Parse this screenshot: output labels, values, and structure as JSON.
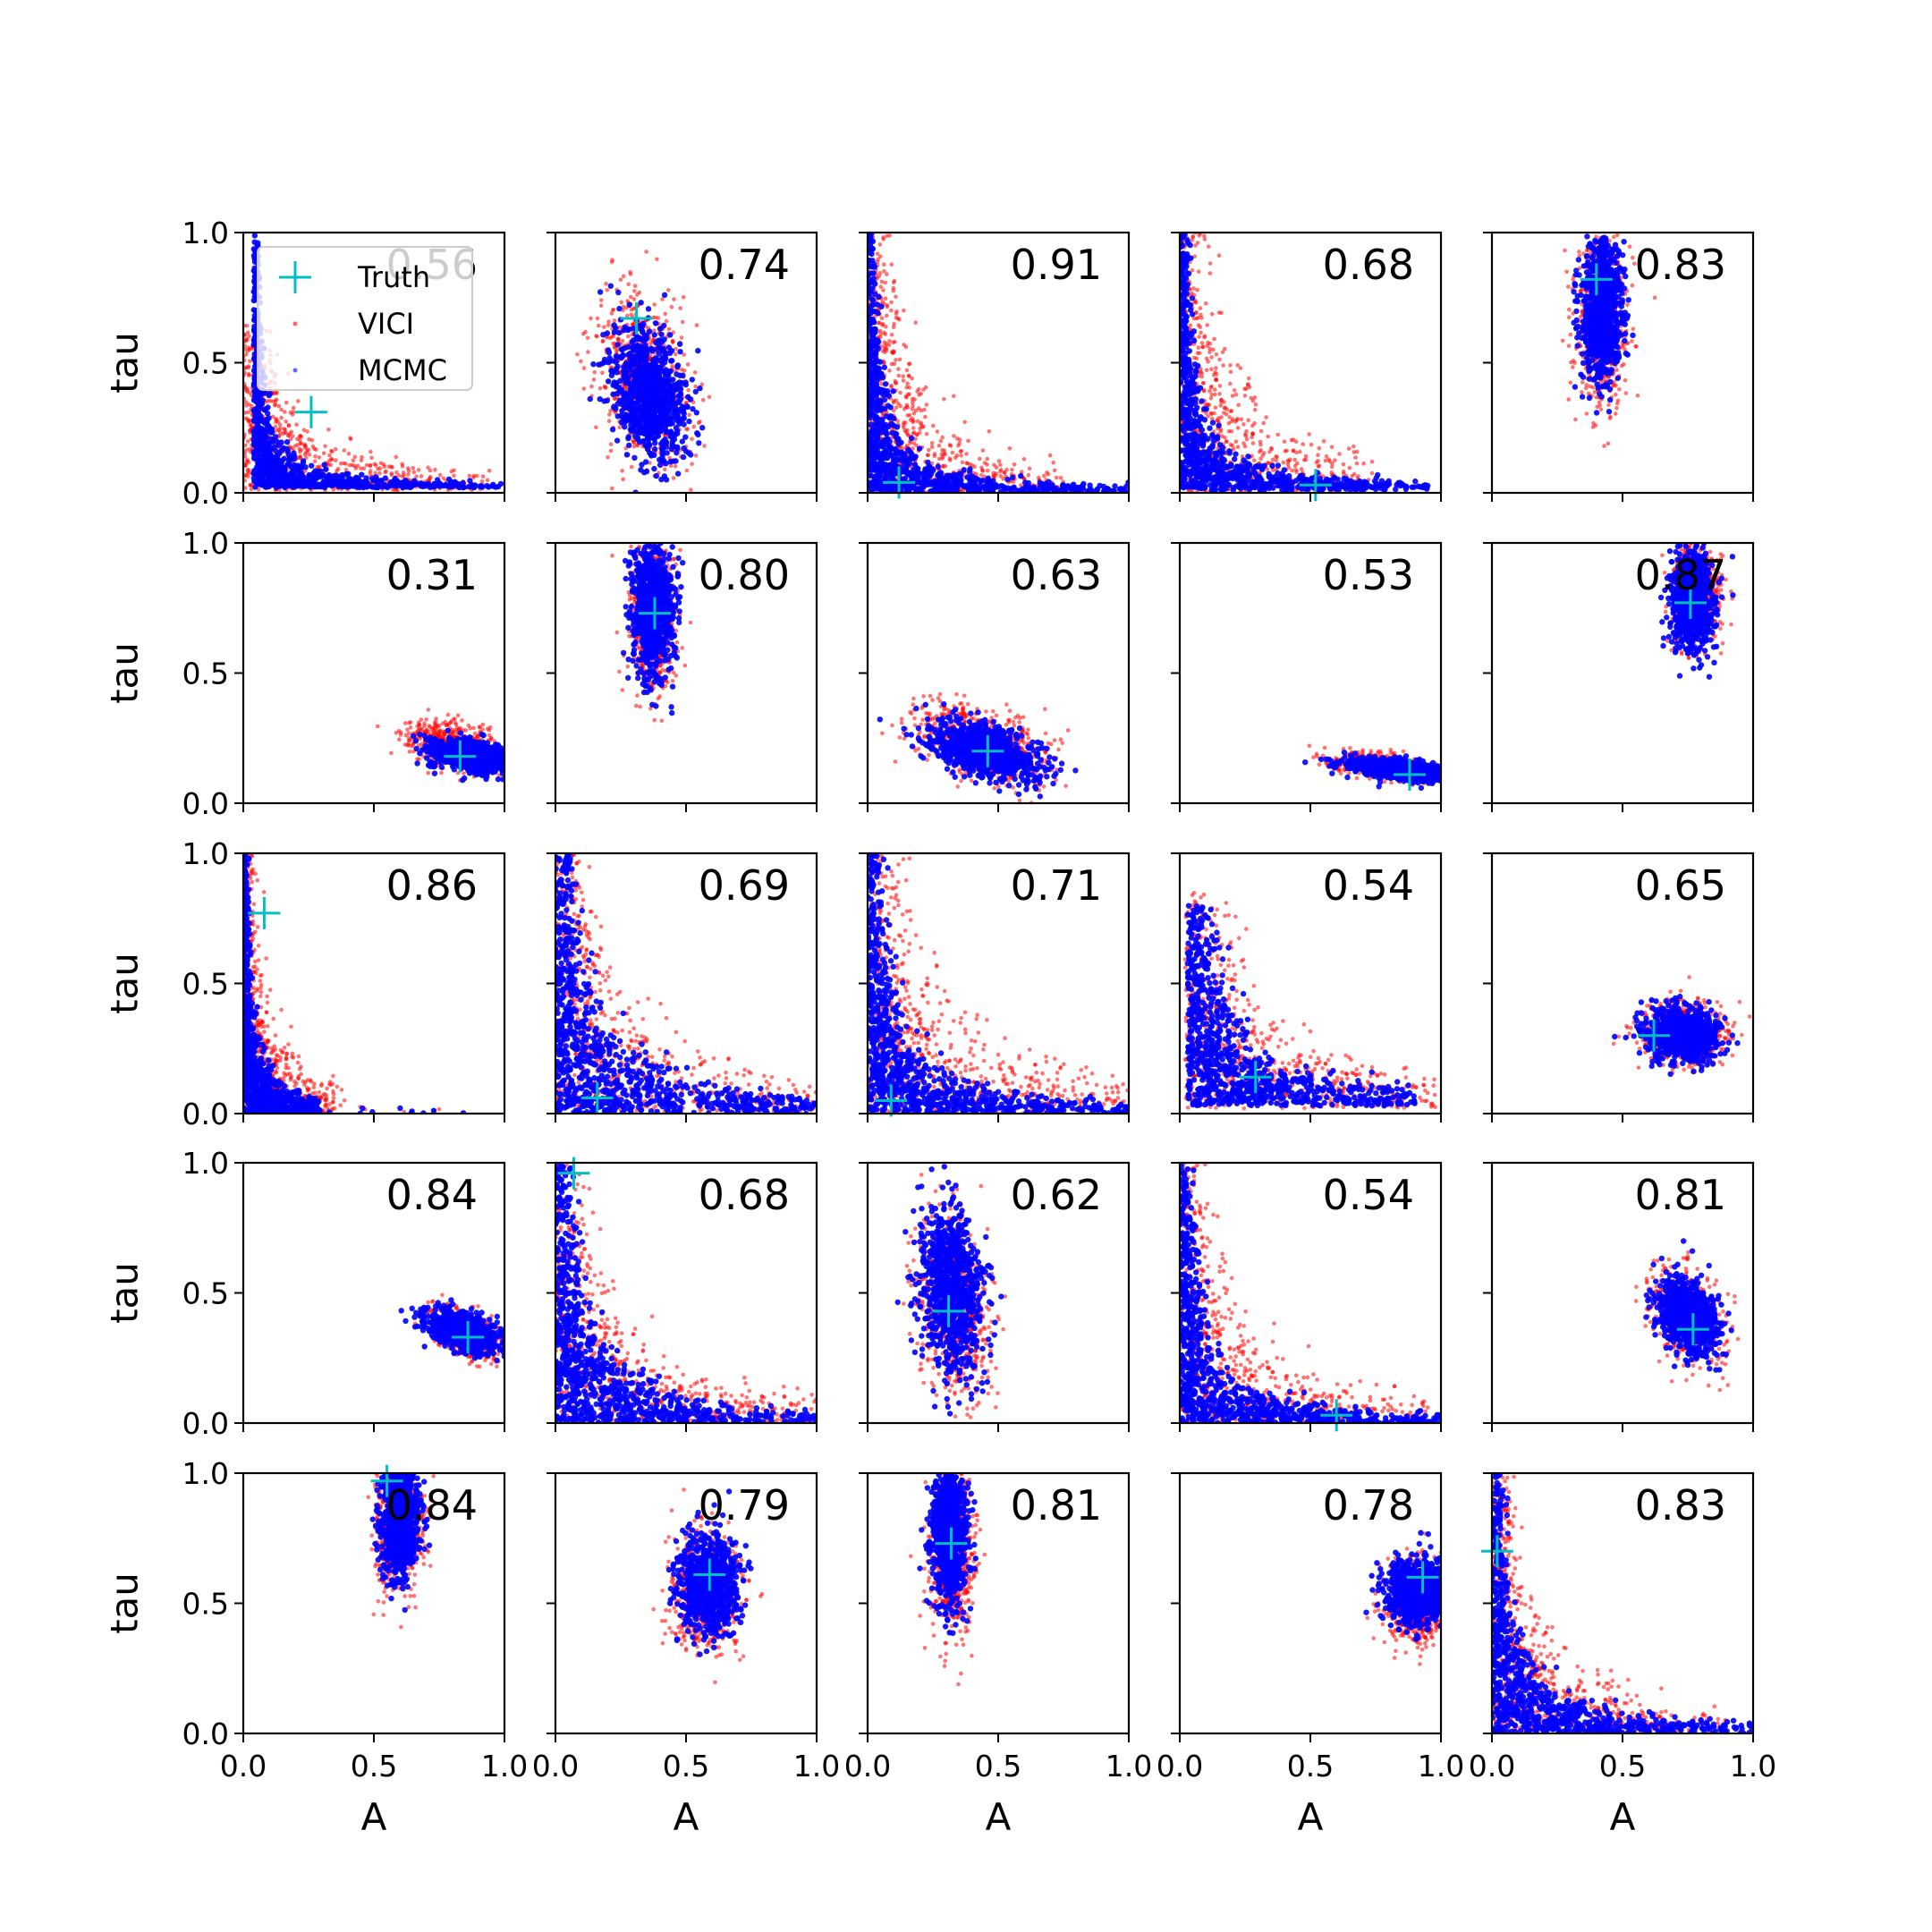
{
  "chart_data": {
    "type": "scatter",
    "layout": "5x5 grid of scatter subplots",
    "xlabel": "A",
    "ylabel": "tau",
    "xlim": [
      0.0,
      1.0
    ],
    "ylim": [
      0.0,
      1.0
    ],
    "xticks": [
      "0.0",
      "0.5",
      "1.0"
    ],
    "yticks": [
      "0.0",
      "0.5",
      "1.0"
    ],
    "legend": {
      "placement": "upper-left of first subplot",
      "entries": [
        {
          "label": "Truth",
          "marker": "+",
          "color": "#00bfbf"
        },
        {
          "label": "VICI",
          "marker": "dot",
          "color": "#ff0000"
        },
        {
          "label": "MCMC",
          "marker": "dot",
          "color": "#0000ff"
        }
      ]
    },
    "series_colors": {
      "VICI": "#ff0000",
      "MCMC": "#0000ff",
      "Truth": "#00bfbf"
    },
    "panels": [
      {
        "label": "0.56",
        "truth": [
          0.26,
          0.31
        ],
        "shape": "corner",
        "mcmc": {
          "ax": 0.04,
          "ay": 0.02,
          "k": 0.012,
          "x2": 1.0,
          "y2": 1.0
        },
        "vici": {
          "ax": 0.0,
          "ay": 0.01,
          "k": 0.045,
          "x2": 0.95,
          "y2": 0.65
        }
      },
      {
        "label": "0.74",
        "truth": [
          0.31,
          0.67
        ],
        "shape": "blob",
        "mcmc": {
          "cx": 0.36,
          "cy": 0.38,
          "sx": 0.07,
          "sy": 0.12,
          "rho": -0.3
        },
        "vici": {
          "cx": 0.33,
          "cy": 0.45,
          "sx": 0.09,
          "sy": 0.17,
          "rho": -0.35
        }
      },
      {
        "label": "0.91",
        "truth": [
          0.12,
          0.04
        ],
        "shape": "corner",
        "mcmc": {
          "ax": 0.0,
          "ay": 0.0,
          "k": 0.02,
          "x2": 1.0,
          "y2": 1.0
        },
        "vici": {
          "ax": 0.0,
          "ay": 0.0,
          "k": 0.06,
          "x2": 0.75,
          "y2": 1.0
        }
      },
      {
        "label": "0.68",
        "truth": [
          0.52,
          0.03
        ],
        "shape": "corner",
        "mcmc": {
          "ax": 0.0,
          "ay": 0.01,
          "k": 0.022,
          "x2": 0.95,
          "y2": 1.0
        },
        "vici": {
          "ax": 0.0,
          "ay": 0.0,
          "k": 0.075,
          "x2": 0.75,
          "y2": 1.0
        }
      },
      {
        "label": "0.83",
        "truth": [
          0.4,
          0.82
        ],
        "shape": "blob",
        "mcmc": {
          "cx": 0.42,
          "cy": 0.7,
          "sx": 0.04,
          "sy": 0.13,
          "rho": 0.0
        },
        "vici": {
          "cx": 0.42,
          "cy": 0.65,
          "sx": 0.05,
          "sy": 0.16,
          "rho": 0.0
        }
      },
      {
        "label": "0.31",
        "truth": [
          0.83,
          0.18
        ],
        "shape": "blob",
        "mcmc": {
          "cx": 0.88,
          "cy": 0.18,
          "sx": 0.08,
          "sy": 0.03,
          "rho": -0.4
        },
        "vici": {
          "cx": 0.81,
          "cy": 0.22,
          "sx": 0.09,
          "sy": 0.045,
          "rho": -0.4
        }
      },
      {
        "label": "0.80",
        "truth": [
          0.38,
          0.73
        ],
        "shape": "blob",
        "mcmc": {
          "cx": 0.37,
          "cy": 0.75,
          "sx": 0.04,
          "sy": 0.13,
          "rho": -0.1
        },
        "vici": {
          "cx": 0.37,
          "cy": 0.72,
          "sx": 0.045,
          "sy": 0.14,
          "rho": -0.1
        }
      },
      {
        "label": "0.63",
        "truth": [
          0.46,
          0.2
        ],
        "shape": "blob",
        "mcmc": {
          "cx": 0.45,
          "cy": 0.2,
          "sx": 0.1,
          "sy": 0.055,
          "rho": -0.45
        },
        "vici": {
          "cx": 0.43,
          "cy": 0.23,
          "sx": 0.13,
          "sy": 0.075,
          "rho": -0.45
        }
      },
      {
        "label": "0.53",
        "truth": [
          0.88,
          0.11
        ],
        "shape": "blob",
        "mcmc": {
          "cx": 0.84,
          "cy": 0.13,
          "sx": 0.1,
          "sy": 0.02,
          "rho": -0.5
        },
        "vici": {
          "cx": 0.8,
          "cy": 0.14,
          "sx": 0.11,
          "sy": 0.025,
          "rho": -0.5
        }
      },
      {
        "label": "0.87",
        "truth": [
          0.76,
          0.77
        ],
        "shape": "blob",
        "mcmc": {
          "cx": 0.77,
          "cy": 0.78,
          "sx": 0.04,
          "sy": 0.09,
          "rho": 0.0
        },
        "vici": {
          "cx": 0.78,
          "cy": 0.82,
          "sx": 0.045,
          "sy": 0.1,
          "rho": 0.0
        }
      },
      {
        "label": "0.86",
        "truth": [
          0.08,
          0.77
        ],
        "shape": "corner",
        "mcmc": {
          "ax": 0.0,
          "ay": 0.0,
          "k": 0.012,
          "x2": 1.0,
          "y2": 1.0,
          "band": 0.3
        },
        "vici": {
          "ax": 0.0,
          "ay": 0.0,
          "k": 0.03,
          "x2": 0.75,
          "y2": 1.0,
          "band": 0.36
        }
      },
      {
        "label": "0.69",
        "truth": [
          0.16,
          0.06
        ],
        "shape": "corner",
        "mcmc": {
          "ax": 0.0,
          "ay": 0.0,
          "k": 0.05,
          "x2": 1.0,
          "y2": 1.0
        },
        "vici": {
          "ax": 0.0,
          "ay": 0.0,
          "k": 0.09,
          "x2": 1.0,
          "y2": 1.0
        }
      },
      {
        "label": "0.71",
        "truth": [
          0.09,
          0.05
        ],
        "shape": "corner",
        "mcmc": {
          "ax": 0.0,
          "ay": 0.0,
          "k": 0.035,
          "x2": 1.0,
          "y2": 1.0
        },
        "vici": {
          "ax": 0.0,
          "ay": 0.0,
          "k": 0.1,
          "x2": 1.0,
          "y2": 1.0
        }
      },
      {
        "label": "0.54",
        "truth": [
          0.29,
          0.14
        ],
        "shape": "corner",
        "mcmc": {
          "ax": 0.03,
          "ay": 0.03,
          "k": 0.045,
          "x2": 0.9,
          "y2": 0.8
        },
        "vici": {
          "ax": 0.02,
          "ay": 0.02,
          "k": 0.09,
          "x2": 0.98,
          "y2": 0.85
        }
      },
      {
        "label": "0.65",
        "truth": [
          0.62,
          0.3
        ],
        "shape": "blob",
        "mcmc": {
          "cx": 0.73,
          "cy": 0.3,
          "sx": 0.07,
          "sy": 0.05,
          "rho": -0.1
        },
        "vici": {
          "cx": 0.74,
          "cy": 0.31,
          "sx": 0.08,
          "sy": 0.06,
          "rho": -0.1
        }
      },
      {
        "label": "0.84",
        "truth": [
          0.86,
          0.33
        ],
        "shape": "blob",
        "mcmc": {
          "cx": 0.84,
          "cy": 0.35,
          "sx": 0.07,
          "sy": 0.04,
          "rho": -0.5
        },
        "vici": {
          "cx": 0.86,
          "cy": 0.34,
          "sx": 0.065,
          "sy": 0.045,
          "rho": -0.5
        }
      },
      {
        "label": "0.68",
        "truth": [
          0.07,
          0.96
        ],
        "shape": "corner",
        "mcmc": {
          "ax": 0.0,
          "ay": 0.0,
          "k": 0.04,
          "x2": 1.0,
          "y2": 1.0
        },
        "vici": {
          "ax": 0.0,
          "ay": 0.0,
          "k": 0.08,
          "x2": 1.0,
          "y2": 1.0
        }
      },
      {
        "label": "0.62",
        "truth": [
          0.31,
          0.43
        ],
        "shape": "blob",
        "mcmc": {
          "cx": 0.32,
          "cy": 0.52,
          "sx": 0.06,
          "sy": 0.16,
          "rho": -0.2
        },
        "vici": {
          "cx": 0.33,
          "cy": 0.45,
          "sx": 0.07,
          "sy": 0.17,
          "rho": -0.25
        }
      },
      {
        "label": "0.54",
        "truth": [
          0.6,
          0.03
        ],
        "shape": "corner",
        "mcmc": {
          "ax": 0.0,
          "ay": 0.0,
          "k": 0.03,
          "x2": 1.0,
          "y2": 1.0
        },
        "vici": {
          "ax": 0.0,
          "ay": 0.0,
          "k": 0.07,
          "x2": 0.95,
          "y2": 1.0
        }
      },
      {
        "label": "0.81",
        "truth": [
          0.77,
          0.36
        ],
        "shape": "blob",
        "mcmc": {
          "cx": 0.75,
          "cy": 0.41,
          "sx": 0.055,
          "sy": 0.07,
          "rho": -0.3
        },
        "vici": {
          "cx": 0.75,
          "cy": 0.41,
          "sx": 0.065,
          "sy": 0.08,
          "rho": -0.3
        }
      },
      {
        "label": "0.84",
        "truth": [
          0.55,
          0.97
        ],
        "shape": "blob",
        "mcmc": {
          "cx": 0.6,
          "cy": 0.82,
          "sx": 0.035,
          "sy": 0.11,
          "rho": 0.0
        },
        "vici": {
          "cx": 0.6,
          "cy": 0.8,
          "sx": 0.045,
          "sy": 0.12,
          "rho": 0.0
        }
      },
      {
        "label": "0.79",
        "truth": [
          0.59,
          0.61
        ],
        "shape": "blob",
        "mcmc": {
          "cx": 0.58,
          "cy": 0.58,
          "sx": 0.055,
          "sy": 0.09,
          "rho": 0.0
        },
        "vici": {
          "cx": 0.57,
          "cy": 0.55,
          "sx": 0.065,
          "sy": 0.11,
          "rho": 0.0
        }
      },
      {
        "label": "0.81",
        "truth": [
          0.32,
          0.73
        ],
        "shape": "blob",
        "mcmc": {
          "cx": 0.31,
          "cy": 0.77,
          "sx": 0.035,
          "sy": 0.13,
          "rho": 0.0
        },
        "vici": {
          "cx": 0.32,
          "cy": 0.7,
          "sx": 0.045,
          "sy": 0.16,
          "rho": 0.0
        }
      },
      {
        "label": "0.78",
        "truth": [
          0.93,
          0.6
        ],
        "shape": "blob",
        "mcmc": {
          "cx": 0.92,
          "cy": 0.55,
          "sx": 0.06,
          "sy": 0.06,
          "rho": 0.0
        },
        "vici": {
          "cx": 0.9,
          "cy": 0.5,
          "sx": 0.06,
          "sy": 0.07,
          "rho": 0.0
        }
      },
      {
        "label": "0.83",
        "truth": [
          0.02,
          0.7
        ],
        "shape": "corner",
        "mcmc": {
          "ax": 0.0,
          "ay": 0.0,
          "k": 0.03,
          "x2": 1.0,
          "y2": 1.0
        },
        "vici": {
          "ax": 0.0,
          "ay": 0.0,
          "k": 0.06,
          "x2": 0.9,
          "y2": 1.0
        }
      }
    ]
  }
}
